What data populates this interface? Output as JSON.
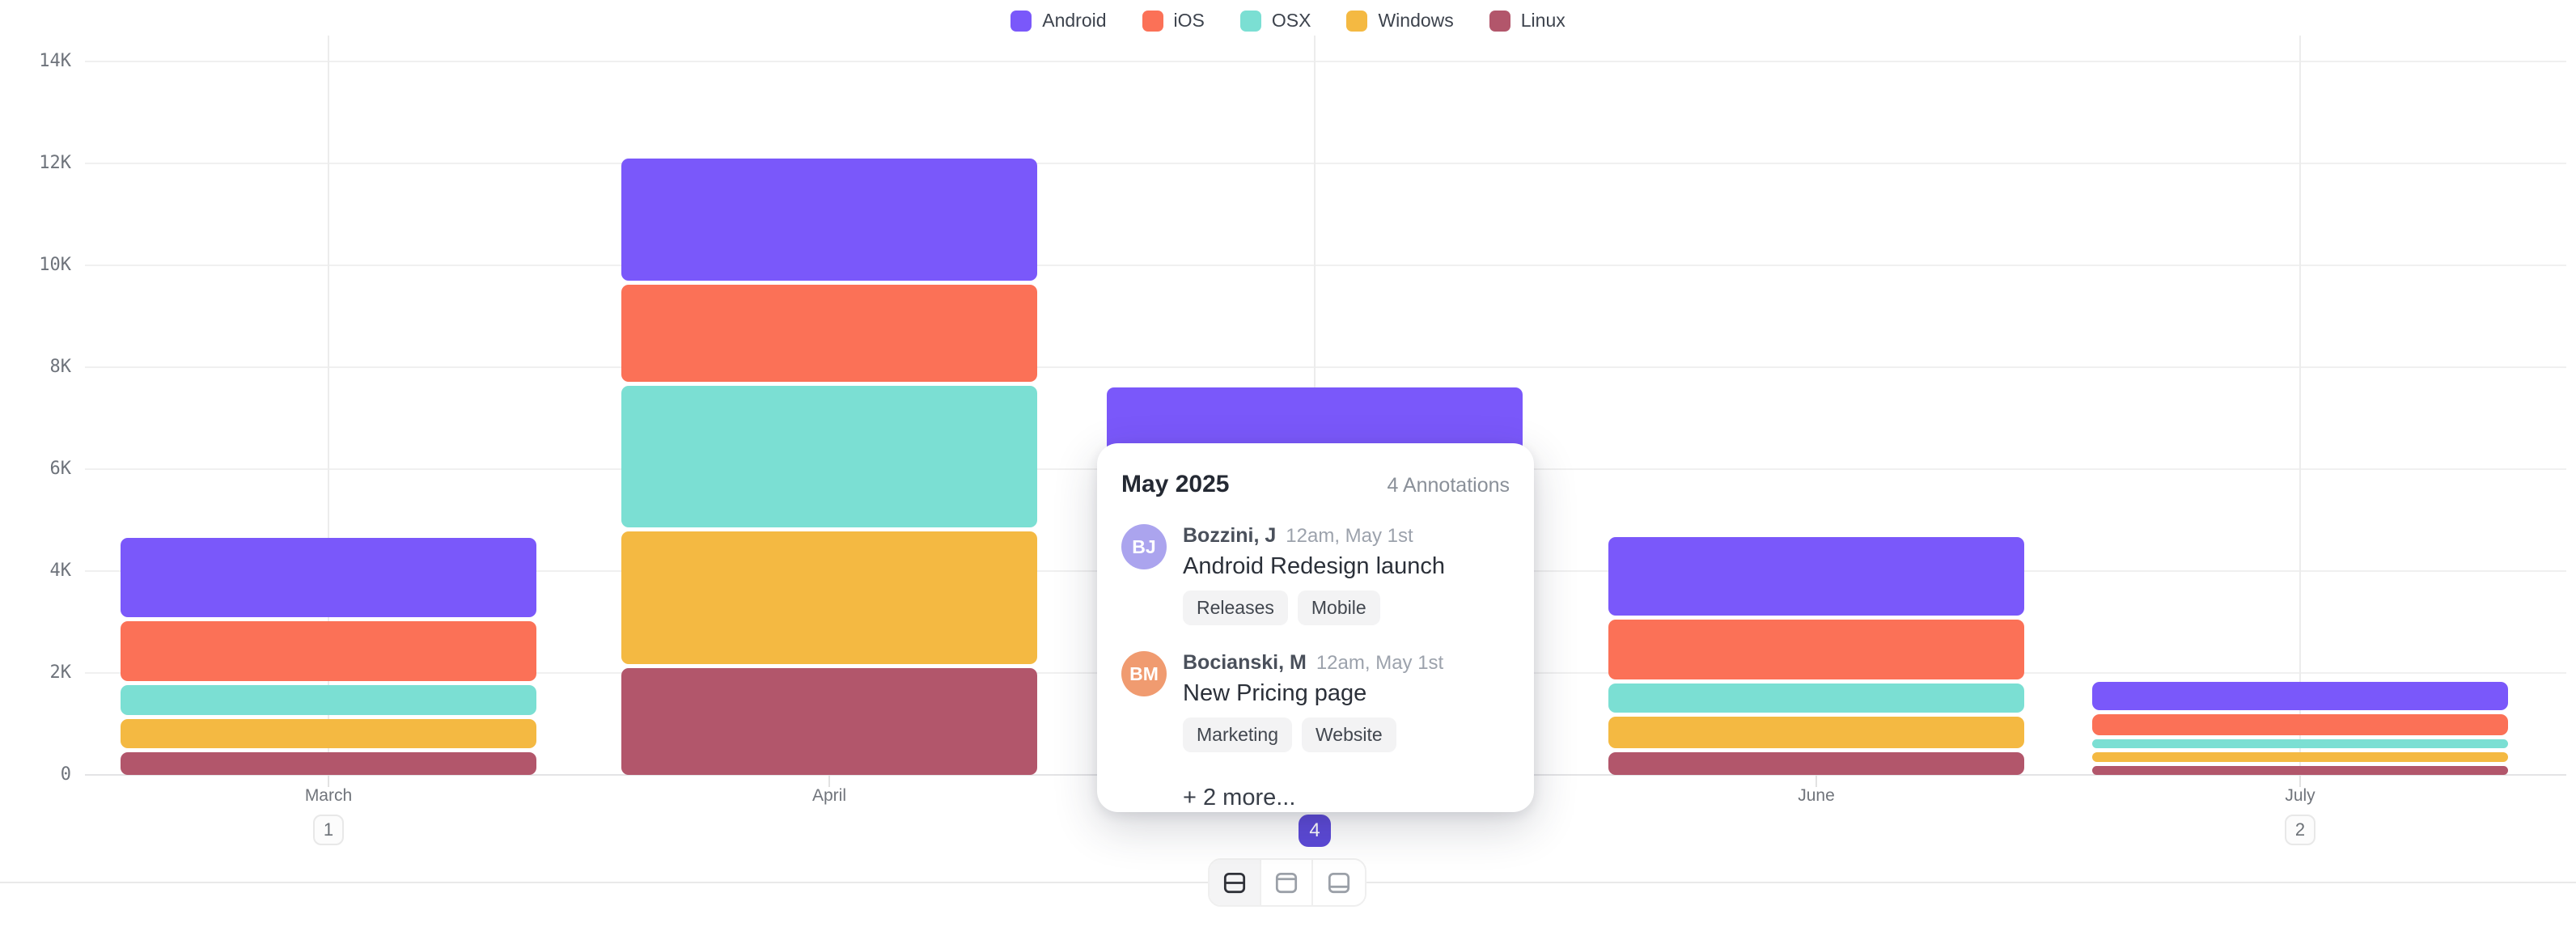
{
  "colors": {
    "android": "#7a58fa",
    "ios": "#fb7157",
    "osx": "#7bdfd3",
    "windows": "#f4b942",
    "linux": "#b2566b",
    "badge_active_bg": "#5c49d8",
    "avatar_1": "#aba4ee",
    "avatar_2": "#f09b70"
  },
  "legend": {
    "items": [
      {
        "label": "Android",
        "color_key": "android"
      },
      {
        "label": "iOS",
        "color_key": "ios"
      },
      {
        "label": "OSX",
        "color_key": "osx"
      },
      {
        "label": "Windows",
        "color_key": "windows"
      },
      {
        "label": "Linux",
        "color_key": "linux"
      }
    ]
  },
  "chart_data": {
    "type": "bar",
    "stacked": true,
    "title": "",
    "xlabel": "",
    "ylabel": "",
    "categories": [
      "March",
      "April",
      "May",
      "June",
      "July"
    ],
    "series": [
      {
        "name": "Android",
        "color_key": "android",
        "values": [
          1550,
          2400,
          1900,
          1540,
          555
        ]
      },
      {
        "name": "iOS",
        "color_key": "ios",
        "values": [
          1175,
          1900,
          1750,
          1175,
          410
        ]
      },
      {
        "name": "OSX",
        "color_key": "osx",
        "values": [
          590,
          2780,
          1450,
          570,
          180
        ]
      },
      {
        "name": "Windows",
        "color_key": "windows",
        "values": [
          570,
          2600,
          1250,
          620,
          195
        ]
      },
      {
        "name": "Linux",
        "color_key": "linux",
        "values": [
          445,
          2100,
          930,
          445,
          170
        ]
      }
    ],
    "y_ticks": [
      "0",
      "2K",
      "4K",
      "6K",
      "8K",
      "10K",
      "12K",
      "14K"
    ],
    "y_tick_values": [
      0,
      2000,
      4000,
      6000,
      8000,
      10000,
      12000,
      14000
    ],
    "ylim": [
      0,
      14000
    ],
    "grid": true,
    "legend_position": "top",
    "vertical_gridline_months": [
      "March",
      "May",
      "July"
    ],
    "annotation_badges": [
      {
        "month": "March",
        "count": "1",
        "active": false
      },
      {
        "month": "May",
        "count": "4",
        "active": true
      },
      {
        "month": "July",
        "count": "2",
        "active": false
      }
    ]
  },
  "tooltip": {
    "title": "May 2025",
    "count_label": "4 Annotations",
    "entries": [
      {
        "initials": "BJ",
        "avatar_color_key": "avatar_1",
        "author": "Bozzini, J",
        "time": "12am, May 1st",
        "title": "Android Redesign launch",
        "tags": [
          "Releases",
          "Mobile"
        ]
      },
      {
        "initials": "BM",
        "avatar_color_key": "avatar_2",
        "author": "Bocianski, M",
        "time": "12am, May 1st",
        "title": "New Pricing page",
        "tags": [
          "Marketing",
          "Website"
        ]
      }
    ],
    "more_label": "+ 2 more..."
  },
  "toolbar": {
    "buttons": [
      {
        "name": "layout-split-view",
        "icon": "split-horizontal-icon",
        "active": true
      },
      {
        "name": "layout-top-view",
        "icon": "panel-top-icon",
        "active": false
      },
      {
        "name": "layout-bottom-view",
        "icon": "panel-bottom-icon",
        "active": false
      }
    ]
  }
}
